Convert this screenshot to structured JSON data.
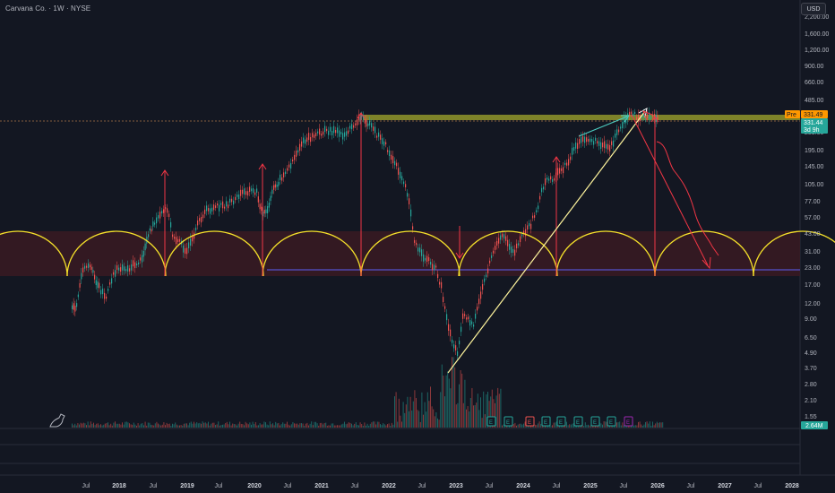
{
  "header": {
    "symbol_title": "Carvana Co. · 1W · NYSE",
    "currency_button": "USD"
  },
  "price_axis": {
    "labels": [
      "2,200.00",
      "1,600.00",
      "1,200.00",
      "900.00",
      "660.00",
      "485.00",
      "285.00",
      "195.00",
      "145.00",
      "105.00",
      "77.00",
      "57.00",
      "43.00",
      "31.00",
      "23.00",
      "17.00",
      "12.00",
      "9.00",
      "6.50",
      "4.90",
      "3.70",
      "2.80",
      "2.10",
      "1.55"
    ]
  },
  "price_badges": {
    "pre_label": "Pre",
    "pre_value": "331.49",
    "last_value": "331.44",
    "countdown": "3d 9h",
    "volume_value": "2.64M"
  },
  "time_axis": {
    "labels": [
      {
        "text": "Jul",
        "year": false
      },
      {
        "text": "2018",
        "year": true
      },
      {
        "text": "Jul",
        "year": false
      },
      {
        "text": "2019",
        "year": true
      },
      {
        "text": "Jul",
        "year": false
      },
      {
        "text": "2020",
        "year": true
      },
      {
        "text": "Jul",
        "year": false
      },
      {
        "text": "2021",
        "year": true
      },
      {
        "text": "Jul",
        "year": false
      },
      {
        "text": "2022",
        "year": true
      },
      {
        "text": "Jul",
        "year": false
      },
      {
        "text": "2023",
        "year": true
      },
      {
        "text": "Jul",
        "year": false
      },
      {
        "text": "2024",
        "year": true
      },
      {
        "text": "Jul",
        "year": false
      },
      {
        "text": "2025",
        "year": true
      },
      {
        "text": "Jul",
        "year": false
      },
      {
        "text": "2026",
        "year": true
      },
      {
        "text": "Jul",
        "year": false
      },
      {
        "text": "2027",
        "year": true
      },
      {
        "text": "Jul",
        "year": false
      },
      {
        "text": "2028",
        "year": true
      }
    ]
  },
  "earnings_markers": [
    {
      "label": "E",
      "color": "#26a69a"
    },
    {
      "label": "E",
      "color": "#26a69a"
    },
    {
      "label": "E",
      "color": "#ef5350"
    },
    {
      "label": "E",
      "color": "#26a69a"
    },
    {
      "label": "E",
      "color": "#26a69a"
    },
    {
      "label": "E",
      "color": "#26a69a"
    },
    {
      "label": "E",
      "color": "#26a69a"
    },
    {
      "label": "E",
      "color": "#26a69a"
    },
    {
      "label": "E",
      "color": "#9c27b0"
    }
  ],
  "colors": {
    "background": "#131722",
    "up": "#26a69a",
    "down": "#ef5350",
    "cycle_arc": "#f5e12a",
    "cycle_fill": "#3a1a22",
    "arrow_red": "#f23645",
    "trend_white": "#fff59d",
    "resistance_band": "#8b8f2a",
    "support_line": "#5b5ef5",
    "pre_badge": "#ff9800",
    "last_badge": "#26a69a"
  },
  "chart_data": {
    "type": "candlestick",
    "symbol": "Carvana Co.",
    "interval": "1W",
    "exchange": "NYSE",
    "scale": "log",
    "last_price": 331.44,
    "premarket_price": 331.49,
    "volume_last": "2.64M",
    "approx_weekly_closes": {
      "x": [
        "2017-05",
        "2017-08",
        "2018-01",
        "2018-06",
        "2018-10",
        "2019-01",
        "2019-06",
        "2019-11",
        "2020-03",
        "2020-06",
        "2020-10",
        "2021-03",
        "2021-08",
        "2021-12",
        "2022-04",
        "2022-08",
        "2022-11",
        "2023-01",
        "2023-06",
        "2023-09",
        "2024-01",
        "2024-06",
        "2024-11",
        "2025-02",
        "2025-05",
        "2025-07"
      ],
      "y": [
        10,
        18,
        22,
        40,
        58,
        32,
        65,
        90,
        25,
        110,
        230,
        290,
        360,
        230,
        110,
        30,
        7,
        4,
        30,
        45,
        55,
        130,
        250,
        220,
        300,
        331
      ]
    },
    "drawings": {
      "resistance_level": 365,
      "support_level": 23,
      "cycle_arcs": 8
    }
  }
}
